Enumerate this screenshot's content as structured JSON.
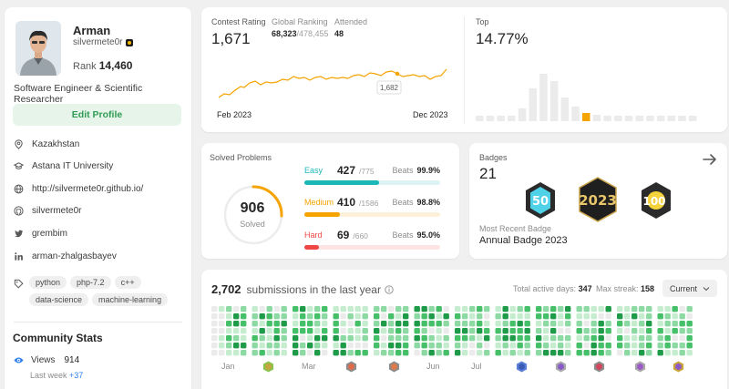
{
  "profile": {
    "name": "Arman",
    "username": "silvermete0r",
    "rank_label": "Rank",
    "rank_value": "14,460",
    "bio": "Software Engineer & Scientific Researcher",
    "edit_label": "Edit Profile",
    "location": "Kazakhstan",
    "school": "Astana IT University",
    "website": "http://silvermete0r.github.io/",
    "github": "silvermete0r",
    "twitter": "grembim",
    "linkedin": "arman-zhalgasbayev",
    "tags": [
      "python",
      "php-7.2",
      "c++",
      "data-science",
      "machine-learning"
    ]
  },
  "community": {
    "title": "Community Stats",
    "views_label": "Views",
    "views_value": "914",
    "last_week_label": "Last week",
    "last_week_value": "+37"
  },
  "contest": {
    "rating_label": "Contest Rating",
    "rating_value": "1,671",
    "global_label": "Global Ranking",
    "global_value": "68,323",
    "global_total": "/478,455",
    "attended_label": "Attended",
    "attended_value": "48",
    "start_label": "Feb 2023",
    "end_label": "Dec 2023",
    "tooltip_value": "1,682",
    "top_label": "Top",
    "top_value": "14.77%"
  },
  "solved": {
    "title": "Solved Problems",
    "total": "906",
    "total_label": "Solved",
    "beats_label": "Beats",
    "easy": {
      "label": "Easy",
      "count": "427",
      "total": "/775",
      "beats": "99.9%",
      "fraction": 0.551,
      "color": "#1cb8b8",
      "track": "#def3f3"
    },
    "medium": {
      "label": "Medium",
      "count": "410",
      "total": "/1586",
      "beats": "98.8%",
      "fraction": 0.259,
      "color": "#f5a300",
      "track": "#fdf0d9"
    },
    "hard": {
      "label": "Hard",
      "count": "69",
      "total": "/660",
      "beats": "95.0%",
      "fraction": 0.105,
      "color": "#ef4743",
      "track": "#fde4e3"
    }
  },
  "badges": {
    "label": "Badges",
    "count": "21",
    "recent_label": "Most Recent Badge",
    "recent_name": "Annual Badge 2023",
    "icons": [
      "badge-50-days-icon",
      "badge-2023-icon",
      "badge-100-days-icon"
    ],
    "badge_50_text": "50",
    "badge_2023_text": "2023",
    "badge_100_text": "100"
  },
  "submissions": {
    "count": "2,702",
    "title_suffix": "submissions in the last year",
    "active_label": "Total active days:",
    "active_value": "347",
    "streak_label": "Max streak:",
    "streak_value": "158",
    "range": "Current",
    "months": [
      "Jan",
      "Mar",
      "Jun",
      "Jul"
    ]
  },
  "colors": {
    "green": "#2cbb5d",
    "easy": "#1cb8b8",
    "medium": "#f5a300",
    "hard": "#ef4743",
    "link": "#2f80ed"
  }
}
